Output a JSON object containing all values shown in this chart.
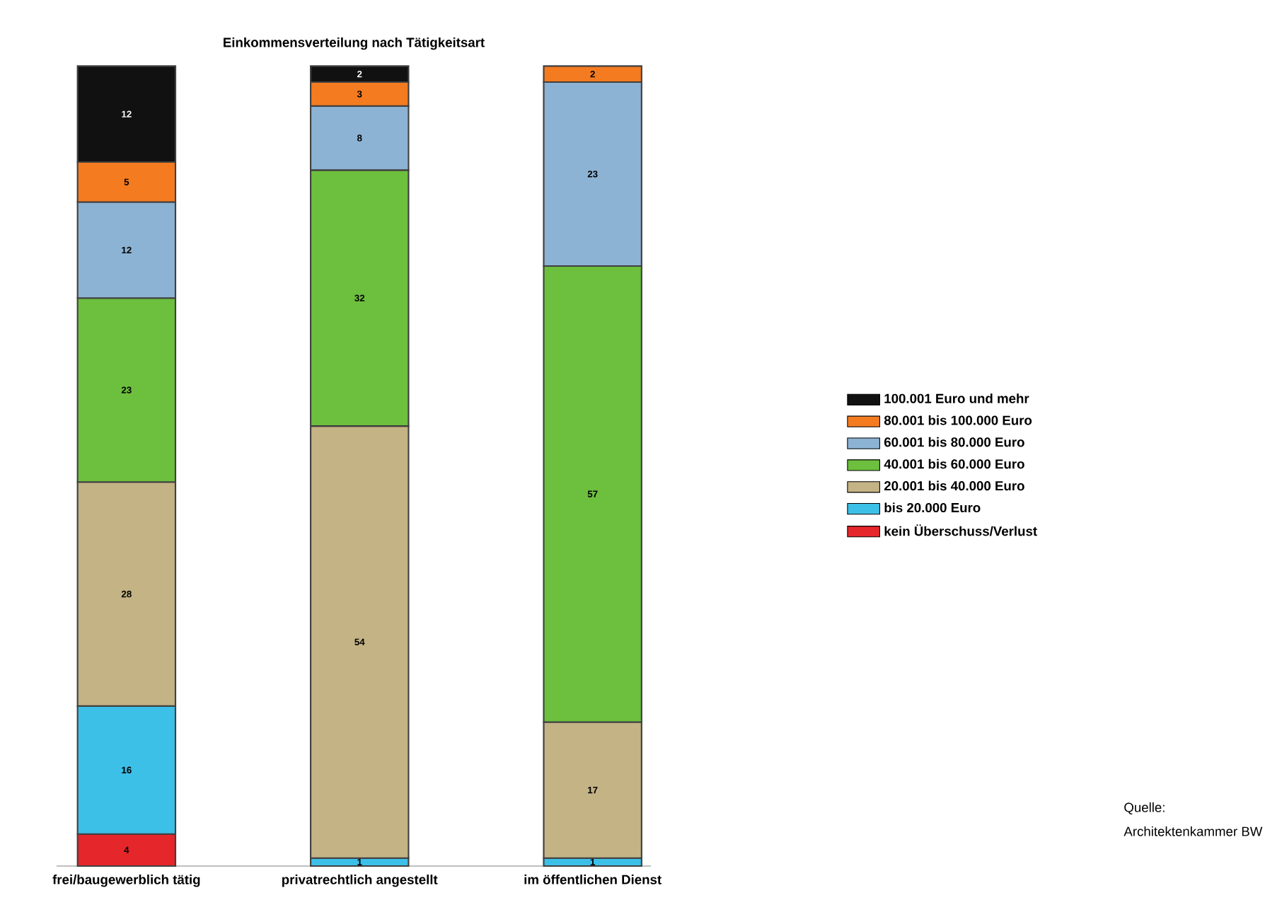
{
  "chart_data": {
    "type": "bar",
    "stacked": true,
    "title": "Einkommensverteilung nach Tätigkeitsart",
    "categories": [
      "frei/baugewerblich tätig",
      "privatrechtlich angestellt",
      "im öffentlichen Dienst"
    ],
    "series": [
      {
        "name": "kein Überschuss/Verlust",
        "color": "#e5262a",
        "values": [
          4,
          null,
          null
        ]
      },
      {
        "name": "bis 20.000 Euro",
        "color": "#3cc0e8",
        "values": [
          16,
          1,
          1
        ]
      },
      {
        "name": "20.001 bis 40.000 Euro",
        "color": "#c4b385",
        "values": [
          28,
          54,
          17
        ]
      },
      {
        "name": "40.001 bis 60.000 Euro",
        "color": "#6dbf3e",
        "values": [
          23,
          32,
          57
        ]
      },
      {
        "name": "60.001 bis 80.000 Euro",
        "color": "#8db3d4",
        "values": [
          12,
          8,
          23
        ]
      },
      {
        "name": "80.001 bis 100.000 Euro",
        "color": "#f47b20",
        "values": [
          5,
          3,
          2
        ]
      },
      {
        "name": "100.001 Euro und mehr",
        "color": "#111111",
        "values": [
          12,
          2,
          null
        ]
      }
    ],
    "ylim": [
      0,
      100
    ],
    "data_labels": true,
    "legend": "right",
    "annotations": [
      "Quelle:",
      "Architektenkammer BW"
    ]
  }
}
